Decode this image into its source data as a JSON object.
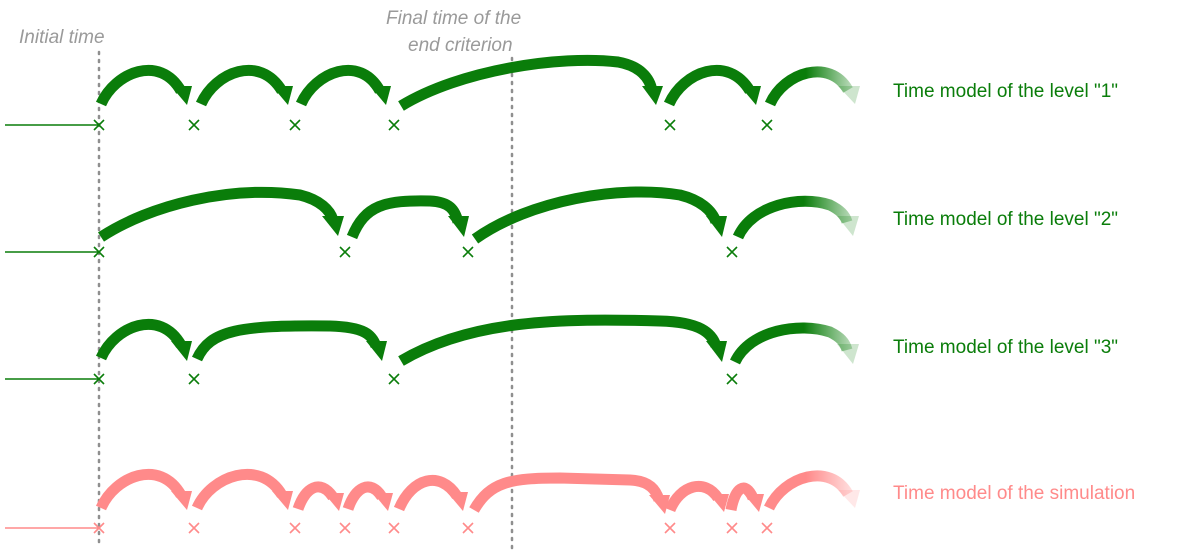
{
  "annotations": {
    "initial_time": "Initial time",
    "final_time_line1": "Final time of the",
    "final_time_line2": "end criterion"
  },
  "rows": [
    {
      "label": "Time model of the level \"1\""
    },
    {
      "label": "Time model of the level \"2\""
    },
    {
      "label": "Time model of the level \"3\""
    },
    {
      "label": "Time model of the simulation"
    }
  ],
  "colors": {
    "level": "#0a7d0a",
    "simulation": "#ff8a8a",
    "guide": "#8f8f8f"
  }
}
